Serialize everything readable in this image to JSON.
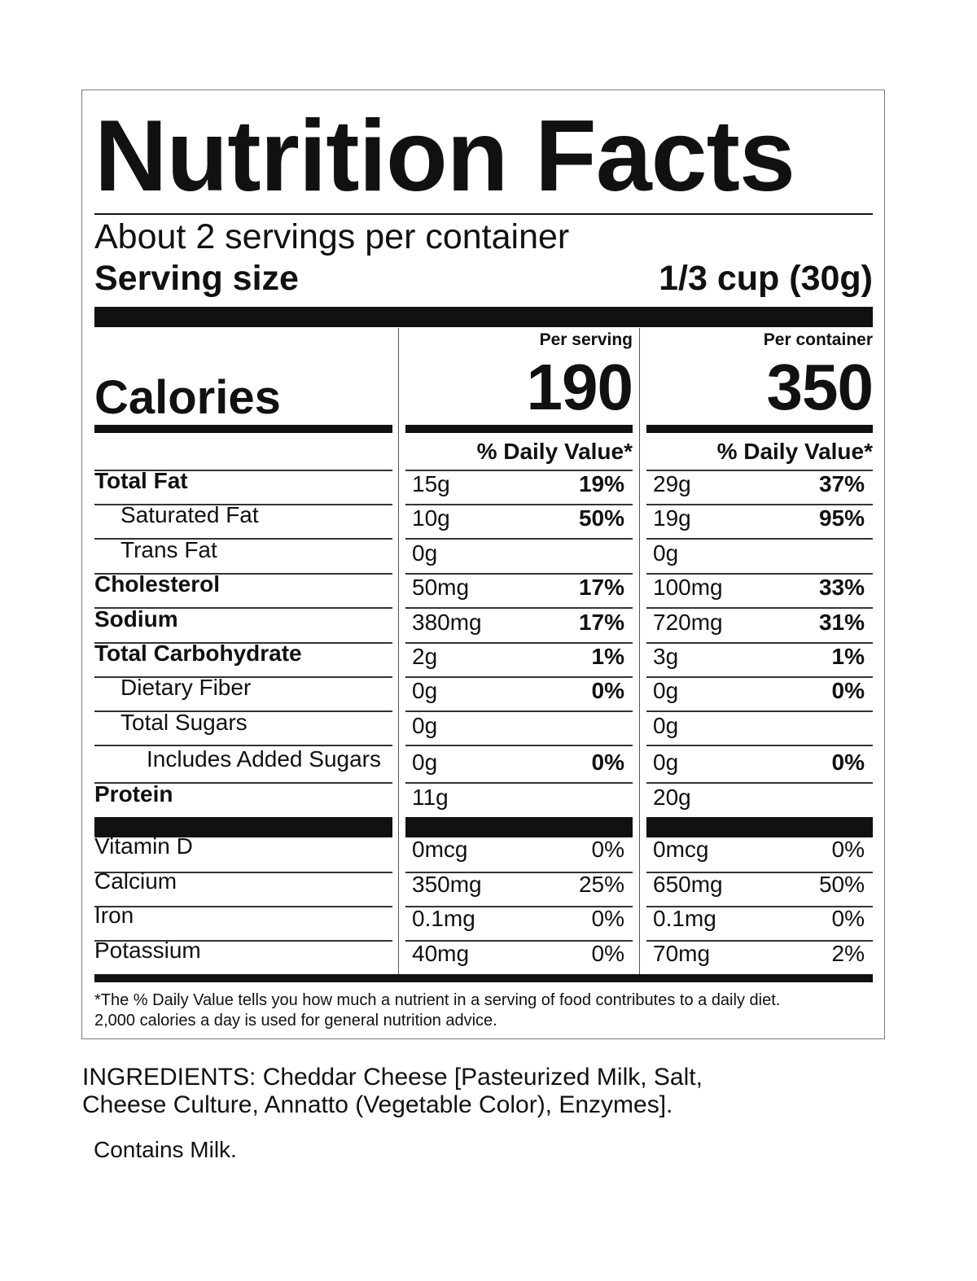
{
  "label": {
    "title": "Nutrition Facts",
    "servings_per_container": "About 2 servings per container",
    "serving_size_label": "Serving size",
    "serving_size_value": "1/3 cup (30g)",
    "calories_label": "Calories",
    "per_serving_heading": "Per serving",
    "per_container_heading": "Per container",
    "calories_per_serving": "190",
    "calories_per_container": "350",
    "daily_value_heading": "% Daily Value*",
    "nutrients": [
      {
        "name": "Total Fat",
        "serving_amount": "15g",
        "serving_dv": "19%",
        "container_amount": "29g",
        "container_dv": "37%"
      },
      {
        "name": "Saturated Fat",
        "serving_amount": "10g",
        "serving_dv": "50%",
        "container_amount": "19g",
        "container_dv": "95%"
      },
      {
        "name": "Trans Fat",
        "serving_amount": "0g",
        "serving_dv": "",
        "container_amount": "0g",
        "container_dv": ""
      },
      {
        "name": "Cholesterol",
        "serving_amount": "50mg",
        "serving_dv": "17%",
        "container_amount": "100mg",
        "container_dv": "33%"
      },
      {
        "name": "Sodium",
        "serving_amount": "380mg",
        "serving_dv": "17%",
        "container_amount": "720mg",
        "container_dv": "31%"
      },
      {
        "name": "Total Carbohydrate",
        "serving_amount": "2g",
        "serving_dv": "1%",
        "container_amount": "3g",
        "container_dv": "1%"
      },
      {
        "name": "Dietary Fiber",
        "serving_amount": "0g",
        "serving_dv": "0%",
        "container_amount": "0g",
        "container_dv": "0%"
      },
      {
        "name": "Total Sugars",
        "serving_amount": "0g",
        "serving_dv": "",
        "container_amount": "0g",
        "container_dv": ""
      },
      {
        "name": "Includes Added Sugars",
        "serving_amount": "0g",
        "serving_dv": "0%",
        "container_amount": "0g",
        "container_dv": "0%"
      },
      {
        "name": "Protein",
        "serving_amount": "11g",
        "serving_dv": "",
        "container_amount": "20g",
        "container_dv": ""
      }
    ],
    "vitamins": [
      {
        "name": "Vitamin D",
        "serving_amount": "0mcg",
        "serving_dv": "0%",
        "container_amount": "0mcg",
        "container_dv": "0%"
      },
      {
        "name": "Calcium",
        "serving_amount": "350mg",
        "serving_dv": "25%",
        "container_amount": "650mg",
        "container_dv": "50%"
      },
      {
        "name": "Iron",
        "serving_amount": "0.1mg",
        "serving_dv": "0%",
        "container_amount": "0.1mg",
        "container_dv": "0%"
      },
      {
        "name": "Potassium",
        "serving_amount": "40mg",
        "serving_dv": "0%",
        "container_amount": "70mg",
        "container_dv": "2%"
      }
    ],
    "footnote_line1": "*The % Daily Value tells you how much a nutrient in a serving of food contributes to a daily diet.",
    "footnote_line2": "2,000 calories a day is used for general nutrition advice."
  },
  "ingredients_line1": "INGREDIENTS: Cheddar Cheese [Pasteurized Milk, Salt,",
  "ingredients_line2": "Cheese Culture, Annatto (Vegetable Color), Enzymes].",
  "allergen_statement": "Contains Milk."
}
